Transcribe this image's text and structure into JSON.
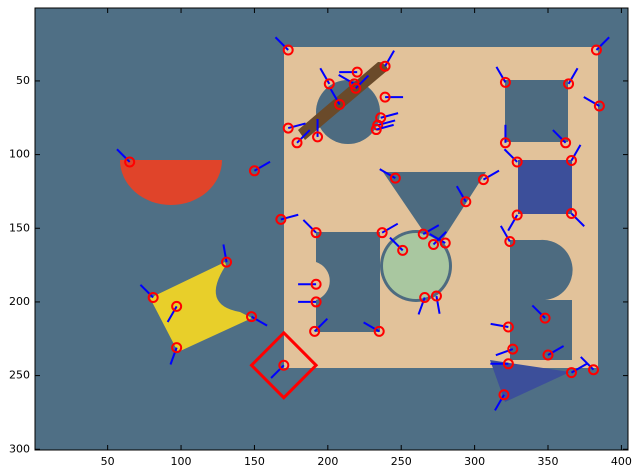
{
  "chart_data": {
    "type": "scatter",
    "x": [
      173,
      383,
      218,
      220,
      239,
      219,
      208,
      239,
      201,
      173,
      179,
      193,
      236,
      234,
      233,
      321,
      364,
      385,
      321,
      329,
      362,
      366,
      329,
      366,
      65,
      150,
      246,
      306,
      294,
      168,
      192,
      237,
      251,
      265,
      272,
      280,
      266,
      274,
      324,
      192,
      192,
      191,
      235,
      131,
      81,
      97,
      97,
      148,
      170,
      323,
      326,
      323,
      320,
      348,
      350,
      366,
      381
    ],
    "y": [
      29,
      29,
      52,
      44,
      40,
      55,
      66,
      61,
      52,
      82,
      92,
      88,
      75,
      80,
      83,
      51,
      52,
      67,
      92,
      105,
      92,
      104,
      141,
      140,
      105,
      111,
      116,
      117,
      132,
      144,
      153,
      153,
      165,
      154,
      161,
      160,
      197,
      196,
      159,
      188,
      200,
      220,
      220,
      173,
      197,
      203,
      231,
      210,
      243,
      217,
      232,
      242,
      263,
      211,
      236,
      248,
      246
    ],
    "angle": [
      135,
      45,
      150,
      180,
      60,
      45,
      120,
      0,
      120,
      15,
      45,
      90,
      15,
      15,
      15,
      120,
      60,
      150,
      90,
      135,
      135,
      60,
      240,
      315,
      135,
      30,
      150,
      30,
      120,
      15,
      135,
      30,
      135,
      30,
      45,
      150,
      250,
      280,
      120,
      180,
      180,
      45,
      150,
      100,
      135,
      240,
      250,
      330,
      225,
      170,
      200,
      180,
      240,
      135,
      30,
      30,
      135
    ],
    "point_color": "#ff0000",
    "orientation_color": "#0000ff",
    "region": {
      "x": [
        170,
        192,
        170,
        148
      ],
      "y": [
        221,
        243,
        265,
        243
      ],
      "color": "#ff0000"
    },
    "xlim": [
      0.5,
      404.5
    ],
    "ylim": [
      0.5,
      300.5
    ],
    "xticks": [
      50,
      100,
      150,
      200,
      250,
      300,
      350,
      400
    ],
    "yticks": [
      50,
      100,
      150,
      200,
      250,
      300
    ]
  }
}
